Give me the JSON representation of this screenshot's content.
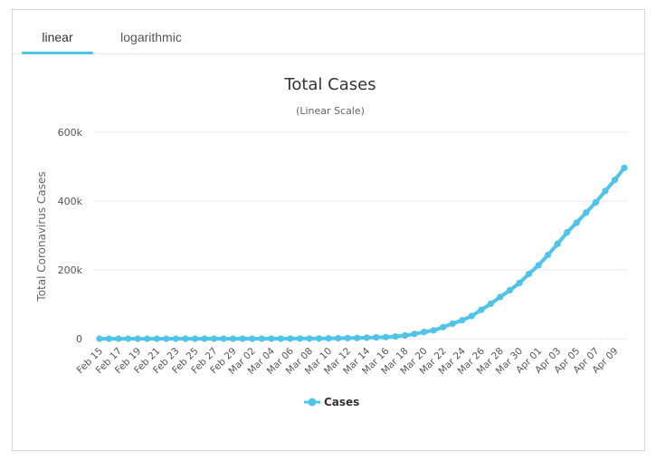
{
  "tabs": [
    {
      "label": "linear",
      "active": true
    },
    {
      "label": "logarithmic",
      "active": false
    }
  ],
  "chart_data": {
    "type": "line",
    "title": "Total Cases",
    "subtitle": "(Linear Scale)",
    "ylabel": "Total Coronavirus Cases",
    "xlabel": "",
    "ylim": [
      0,
      600000
    ],
    "y_ticks": [
      "0",
      "200k",
      "400k",
      "600k"
    ],
    "y_tick_values": [
      0,
      200000,
      400000,
      600000
    ],
    "grid": true,
    "legend_position": "bottom-center",
    "x_tick_labels": [
      "Feb 15",
      "Feb 17",
      "Feb 19",
      "Feb 21",
      "Feb 23",
      "Feb 25",
      "Feb 27",
      "Feb 29",
      "Mar 02",
      "Mar 04",
      "Mar 06",
      "Mar 08",
      "Mar 10",
      "Mar 12",
      "Mar 14",
      "Mar 16",
      "Mar 18",
      "Mar 20",
      "Mar 22",
      "Mar 24",
      "Mar 26",
      "Mar 28",
      "Mar 30",
      "Apr 01",
      "Apr 03",
      "Apr 05",
      "Apr 07",
      "Apr 09"
    ],
    "x": [
      "Feb 15",
      "Feb 16",
      "Feb 17",
      "Feb 18",
      "Feb 19",
      "Feb 20",
      "Feb 21",
      "Feb 22",
      "Feb 23",
      "Feb 24",
      "Feb 25",
      "Feb 26",
      "Feb 27",
      "Feb 28",
      "Feb 29",
      "Mar 01",
      "Mar 02",
      "Mar 03",
      "Mar 04",
      "Mar 05",
      "Mar 06",
      "Mar 07",
      "Mar 08",
      "Mar 09",
      "Mar 10",
      "Mar 11",
      "Mar 12",
      "Mar 13",
      "Mar 14",
      "Mar 15",
      "Mar 16",
      "Mar 17",
      "Mar 18",
      "Mar 19",
      "Mar 20",
      "Mar 21",
      "Mar 22",
      "Mar 23",
      "Mar 24",
      "Mar 25",
      "Mar 26",
      "Mar 27",
      "Mar 28",
      "Mar 29",
      "Mar 30",
      "Mar 31",
      "Apr 01",
      "Apr 02",
      "Apr 03",
      "Apr 04",
      "Apr 05",
      "Apr 06",
      "Apr 07",
      "Apr 08",
      "Apr 09",
      "Apr 10"
    ],
    "series": [
      {
        "name": "Cases",
        "color": "#4fc3e8",
        "values": [
          15,
          15,
          15,
          15,
          15,
          15,
          15,
          35,
          35,
          53,
          57,
          60,
          60,
          62,
          68,
          75,
          100,
          124,
          158,
          221,
          319,
          435,
          541,
          704,
          994,
          1301,
          1697,
          2247,
          2943,
          3680,
          4663,
          6411,
          9259,
          13789,
          19383,
          24207,
          33546,
          43843,
          53740,
          65778,
          83836,
          101657,
          121478,
          140886,
          161807,
          188172,
          213372,
          243453,
          275586,
          308850,
          337072,
          366667,
          396223,
          429052,
          461437,
          496535
        ]
      }
    ]
  }
}
